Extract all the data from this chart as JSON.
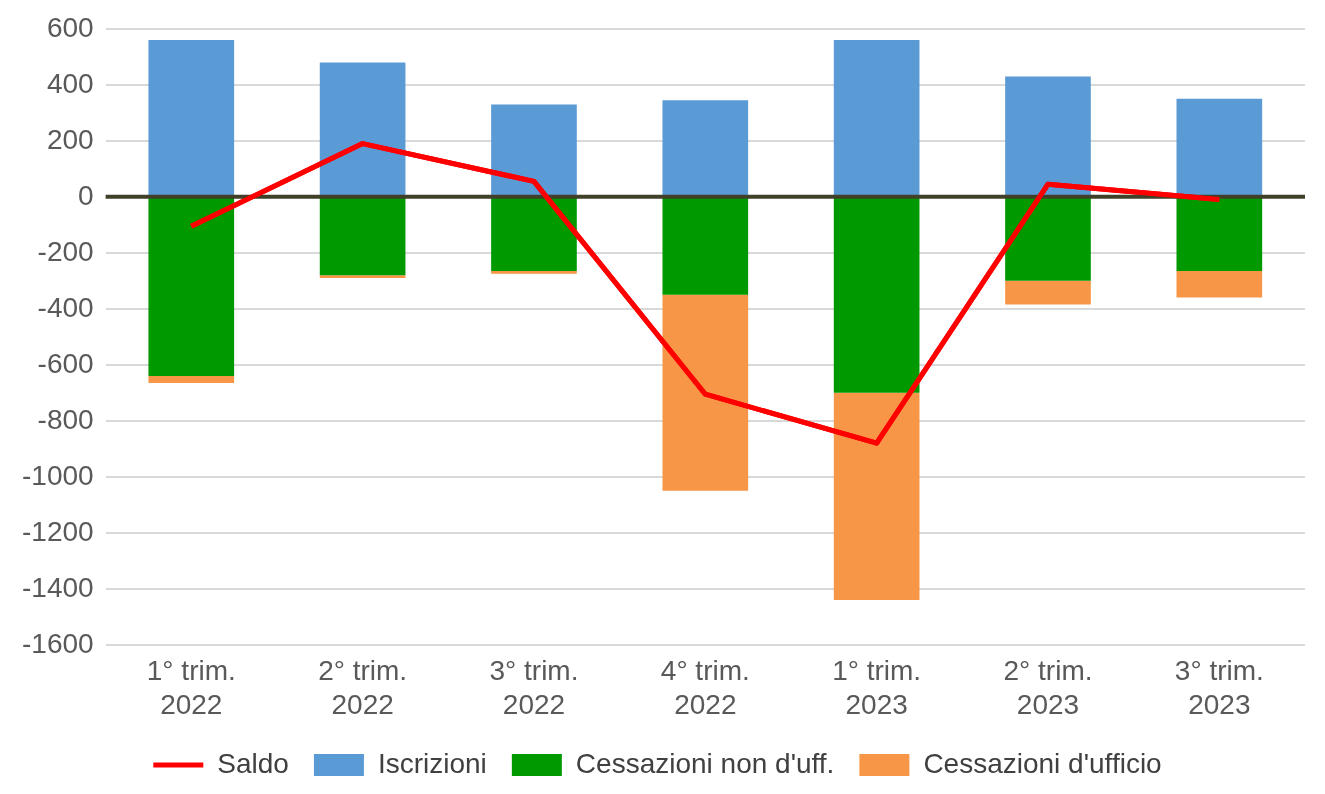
{
  "chart_data": {
    "type": "bar",
    "stacked": true,
    "categories": [
      "1° trim. 2022",
      "2° trim. 2022",
      "3° trim. 2022",
      "4° trim. 2022",
      "1° trim. 2023",
      "2° trim. 2023",
      "3° trim. 2023"
    ],
    "series": [
      {
        "name": "Iscrizioni",
        "color": "#5b9bd5",
        "values": [
          560,
          480,
          330,
          345,
          560,
          430,
          350
        ]
      },
      {
        "name": "Cessazioni non d'uff.",
        "color": "#009900",
        "values": [
          -640,
          -280,
          -265,
          -350,
          -700,
          -300,
          -265
        ]
      },
      {
        "name": "Cessazioni d'ufficio",
        "color": "#f79646",
        "values": [
          -25,
          -10,
          -10,
          -700,
          -740,
          -85,
          -95
        ]
      },
      {
        "name": "Saldo",
        "type": "line",
        "color": "#ff0000",
        "marker": "none",
        "values": [
          -105,
          190,
          55,
          -705,
          -880,
          45,
          -10
        ]
      }
    ],
    "ylim": [
      -1600,
      600
    ],
    "yticks": [
      -1600,
      -1400,
      -1200,
      -1000,
      -800,
      -600,
      -400,
      -200,
      0,
      200,
      400,
      600
    ],
    "ref_lines": [
      {
        "axis": "y",
        "value": 0,
        "color": "#404028"
      }
    ],
    "grid": "y",
    "legend": "bottom"
  }
}
